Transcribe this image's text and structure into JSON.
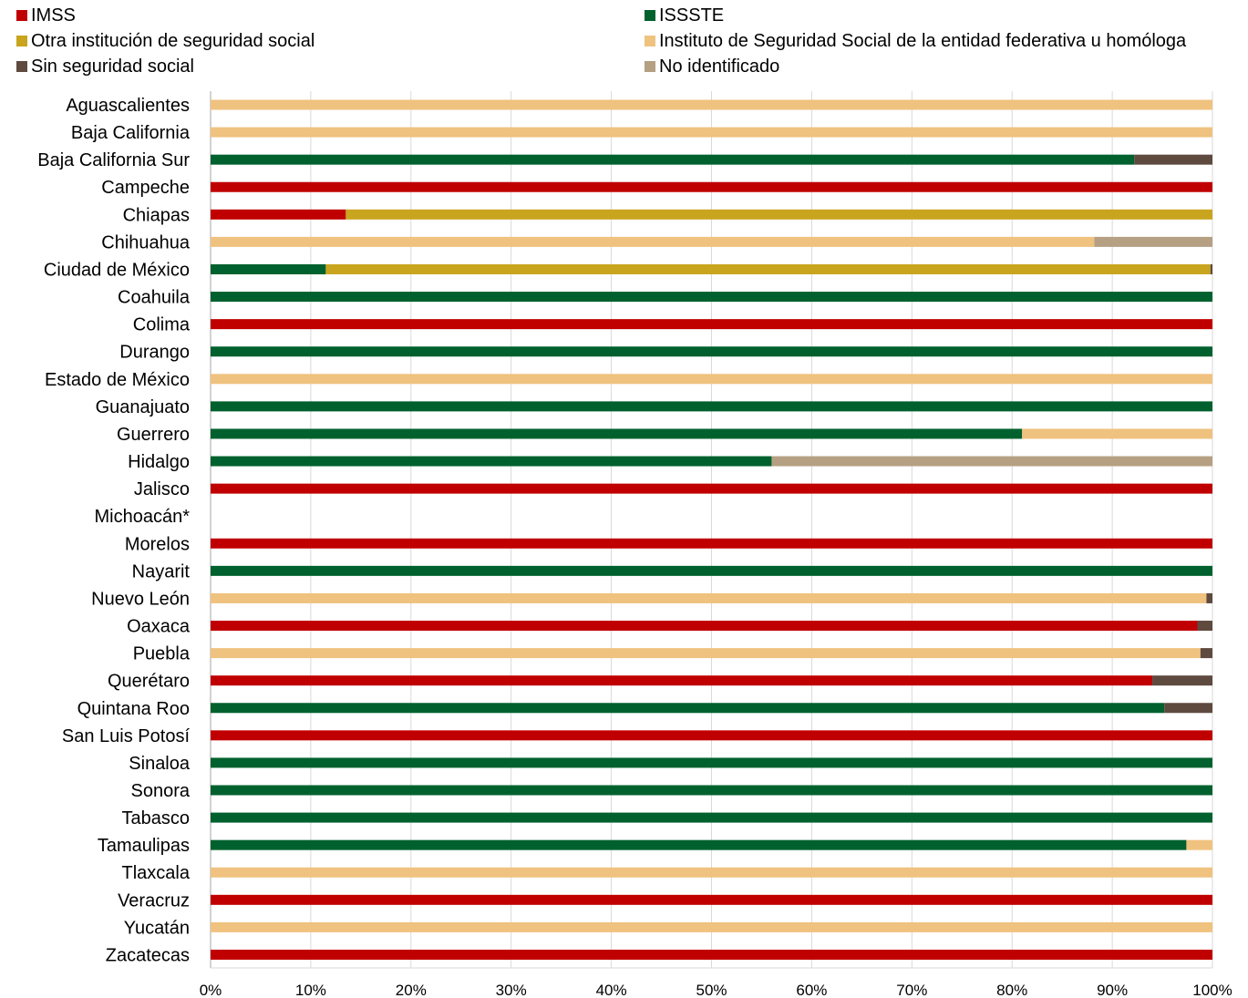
{
  "chart_data": {
    "type": "bar",
    "orientation": "horizontal",
    "stacked": true,
    "percent": true,
    "title": "",
    "xlabel": "",
    "ylabel": "",
    "xlim": [
      0,
      100
    ],
    "x_ticks": [
      "0%",
      "10%",
      "20%",
      "30%",
      "40%",
      "50%",
      "60%",
      "70%",
      "80%",
      "90%",
      "100%"
    ],
    "grid": "vertical",
    "legend_position": "top",
    "categories": [
      "Aguascalientes",
      "Baja California",
      "Baja California Sur",
      "Campeche",
      "Chiapas",
      "Chihuahua",
      "Ciudad de México",
      "Coahuila",
      "Colima",
      "Durango",
      "Estado de México",
      "Guanajuato",
      "Guerrero",
      "Hidalgo",
      "Jalisco",
      "Michoacán*",
      "Morelos",
      "Nayarit",
      "Nuevo León",
      "Oaxaca",
      "Puebla",
      "Querétaro",
      "Quintana Roo",
      "San Luis Potosí",
      "Sinaloa",
      "Sonora",
      "Tabasco",
      "Tamaulipas",
      "Tlaxcala",
      "Veracruz",
      "Yucatán",
      "Zacatecas"
    ],
    "series": [
      {
        "name": "IMSS",
        "color": "#C00000",
        "values": [
          0,
          0,
          0,
          100,
          13.5,
          0,
          0,
          0,
          100,
          0,
          0,
          0,
          0,
          0,
          100,
          0,
          100,
          0,
          0,
          98.5,
          0,
          94,
          0,
          100,
          0,
          0,
          0,
          0,
          0,
          100,
          0,
          100
        ]
      },
      {
        "name": "ISSSTE",
        "color": "#00612E",
        "values": [
          0,
          0,
          92.2,
          0,
          0,
          0,
          11.5,
          100,
          0,
          100,
          0,
          100,
          81,
          56,
          0,
          0,
          0,
          100,
          0,
          0,
          0,
          0,
          95.2,
          0,
          100,
          100,
          100,
          97.4,
          0,
          0,
          0,
          0
        ]
      },
      {
        "name": "Otra institución de seguridad social",
        "color": "#C9A41E",
        "values": [
          0,
          0,
          0,
          0,
          86.5,
          0,
          88.3,
          0,
          0,
          0,
          0,
          0,
          0,
          0,
          0,
          0,
          0,
          0,
          0,
          0,
          0,
          0,
          0,
          0,
          0,
          0,
          0,
          0,
          0,
          0,
          0,
          0
        ]
      },
      {
        "name": "Instituto de Seguridad Social de la entidad federativa u homóloga",
        "color": "#F0C27F",
        "values": [
          100,
          100,
          0,
          0,
          0,
          88.2,
          0,
          0,
          0,
          0,
          100,
          0,
          19,
          0,
          0,
          0,
          0,
          0,
          99.4,
          0,
          98.8,
          0,
          0,
          0,
          0,
          0,
          0,
          2.6,
          100,
          0,
          100,
          0
        ]
      },
      {
        "name": "Sin seguridad social",
        "color": "#5E4A3F",
        "values": [
          0,
          0,
          7.8,
          0,
          0,
          0,
          0.2,
          0,
          0,
          0,
          0,
          0,
          0,
          0,
          0,
          0,
          0,
          0,
          0.6,
          1.5,
          1.2,
          6,
          4.8,
          0,
          0,
          0,
          0,
          0,
          0,
          0,
          0,
          0
        ]
      },
      {
        "name": "No identificado",
        "color": "#B5A083",
        "values": [
          0,
          0,
          0,
          0,
          0,
          11.8,
          0,
          0,
          0,
          0,
          0,
          0,
          0,
          44,
          0,
          0,
          0,
          0,
          0,
          0,
          0,
          0,
          0,
          0,
          0,
          0,
          0,
          0,
          0,
          0,
          0,
          0
        ]
      }
    ]
  }
}
